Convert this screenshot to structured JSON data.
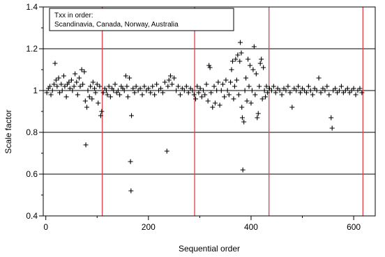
{
  "chart_data": {
    "type": "scatter",
    "title": "",
    "xlabel": "Sequential order",
    "ylabel": "Scale factor",
    "xlim": [
      -5,
      642
    ],
    "ylim": [
      0.4,
      1.4
    ],
    "xticks": [
      0,
      200,
      400,
      600
    ],
    "yticks": [
      0.4,
      0.6,
      0.8,
      1.0,
      1.2,
      1.4
    ],
    "ytick_labels": [
      "0.4",
      "0.6",
      "0.8",
      "1",
      "1.2",
      "1.4"
    ],
    "grid": "horizontal",
    "legend_placement": "top-left",
    "annotation": {
      "line1": "Txx in order:",
      "line2": "Scandinavia, Canada, Norway, Australia"
    },
    "vertical_lines": [
      110,
      290,
      435,
      618
    ],
    "marker": "+",
    "colors": {
      "points": "#000000",
      "gridlines": "#000000",
      "vertical_lines": "#e0404a"
    },
    "series": [
      {
        "values": [
          [
            2,
            0.99
          ],
          [
            5,
            1.01
          ],
          [
            8,
            1.02
          ],
          [
            10,
            0.98
          ],
          [
            13,
            1.0
          ],
          [
            16,
            1.03
          ],
          [
            18,
            1.13
          ],
          [
            20,
            1.05
          ],
          [
            22,
            1.02
          ],
          [
            25,
            1.06
          ],
          [
            27,
            0.99
          ],
          [
            30,
            1.03
          ],
          [
            32,
            1.0
          ],
          [
            35,
            1.07
          ],
          [
            37,
            1.02
          ],
          [
            40,
            0.97
          ],
          [
            42,
            1.03
          ],
          [
            45,
            1.04
          ],
          [
            47,
            1.01
          ],
          [
            50,
            1.05
          ],
          [
            52,
            1.0
          ],
          [
            55,
            1.02
          ],
          [
            57,
            1.08
          ],
          [
            60,
            1.04
          ],
          [
            62,
            0.98
          ],
          [
            65,
            1.06
          ],
          [
            67,
            1.02
          ],
          [
            70,
            1.1
          ],
          [
            72,
            1.03
          ],
          [
            75,
            1.09
          ],
          [
            77,
            0.95
          ],
          [
            78,
            0.74
          ],
          [
            80,
            0.92
          ],
          [
            82,
            1.0
          ],
          [
            85,
            0.97
          ],
          [
            87,
            1.02
          ],
          [
            90,
            0.96
          ],
          [
            92,
            1.04
          ],
          [
            95,
            1.01
          ],
          [
            97,
            0.99
          ],
          [
            100,
            1.03
          ],
          [
            102,
            0.94
          ],
          [
            105,
            1.02
          ],
          [
            107,
            0.88
          ],
          [
            109,
            0.9
          ],
          [
            112,
            0.99
          ],
          [
            115,
            1.01
          ],
          [
            118,
            1.0
          ],
          [
            120,
            0.98
          ],
          [
            123,
            1.02
          ],
          [
            126,
            0.97
          ],
          [
            129,
            1.01
          ],
          [
            132,
            1.0
          ],
          [
            135,
            1.03
          ],
          [
            138,
            0.99
          ],
          [
            141,
            1.0
          ],
          [
            144,
            0.98
          ],
          [
            147,
            1.02
          ],
          [
            150,
            1.01
          ],
          [
            153,
            1.0
          ],
          [
            156,
            1.07
          ],
          [
            158,
            1.02
          ],
          [
            160,
            0.97
          ],
          [
            163,
            1.06
          ],
          [
            165,
            0.66
          ],
          [
            166,
            0.52
          ],
          [
            167,
            0.88
          ],
          [
            170,
            1.01
          ],
          [
            173,
            0.99
          ],
          [
            176,
            1.02
          ],
          [
            180,
            1.0
          ],
          [
            184,
            1.01
          ],
          [
            188,
            0.98
          ],
          [
            192,
            1.02
          ],
          [
            196,
            1.0
          ],
          [
            200,
            1.01
          ],
          [
            204,
            0.99
          ],
          [
            208,
            1.02
          ],
          [
            212,
            0.98
          ],
          [
            216,
            1.03
          ],
          [
            220,
            1.0
          ],
          [
            224,
            1.01
          ],
          [
            228,
            0.99
          ],
          [
            232,
            1.04
          ],
          [
            236,
            0.71
          ],
          [
            238,
            1.02
          ],
          [
            240,
            1.05
          ],
          [
            243,
            1.07
          ],
          [
            246,
            1.03
          ],
          [
            250,
            1.06
          ],
          [
            254,
            1.0
          ],
          [
            258,
            1.02
          ],
          [
            262,
            0.98
          ],
          [
            266,
            1.01
          ],
          [
            270,
            1.0
          ],
          [
            274,
            1.02
          ],
          [
            278,
            0.99
          ],
          [
            282,
            1.01
          ],
          [
            286,
            1.0
          ],
          [
            289,
            0.98
          ],
          [
            292,
            0.96
          ],
          [
            295,
            1.02
          ],
          [
            298,
            0.99
          ],
          [
            301,
            1.01
          ],
          [
            304,
            0.97
          ],
          [
            307,
            1.0
          ],
          [
            310,
            0.98
          ],
          [
            313,
            1.03
          ],
          [
            316,
            0.95
          ],
          [
            318,
            1.12
          ],
          [
            320,
            1.11
          ],
          [
            322,
            0.99
          ],
          [
            325,
            0.92
          ],
          [
            328,
            1.02
          ],
          [
            330,
            0.94
          ],
          [
            333,
            1.0
          ],
          [
            336,
            1.04
          ],
          [
            339,
            0.93
          ],
          [
            342,
            1.0
          ],
          [
            345,
            1.03
          ],
          [
            348,
            0.97
          ],
          [
            351,
            1.05
          ],
          [
            354,
            1.0
          ],
          [
            357,
            0.98
          ],
          [
            360,
            1.04
          ],
          [
            362,
            1.1
          ],
          [
            364,
            1.14
          ],
          [
            366,
            0.96
          ],
          [
            368,
            1.02
          ],
          [
            370,
            1.15
          ],
          [
            372,
            1.05
          ],
          [
            374,
            1.17
          ],
          [
            376,
            0.98
          ],
          [
            378,
            1.14
          ],
          [
            379,
            1.23
          ],
          [
            381,
            1.18
          ],
          [
            382,
            0.92
          ],
          [
            383,
            0.87
          ],
          [
            384,
            0.62
          ],
          [
            386,
            0.85
          ],
          [
            388,
            1.0
          ],
          [
            390,
            1.06
          ],
          [
            392,
            0.95
          ],
          [
            394,
            1.15
          ],
          [
            396,
            1.02
          ],
          [
            398,
            1.12
          ],
          [
            400,
            0.94
          ],
          [
            402,
            1.0
          ],
          [
            404,
            1.1
          ],
          [
            406,
            1.21
          ],
          [
            408,
            0.98
          ],
          [
            410,
            1.08
          ],
          [
            412,
            0.87
          ],
          [
            414,
            0.89
          ],
          [
            416,
            1.02
          ],
          [
            418,
            1.13
          ],
          [
            420,
            1.15
          ],
          [
            422,
            0.96
          ],
          [
            424,
            1.11
          ],
          [
            426,
            1.0
          ],
          [
            428,
            0.97
          ],
          [
            430,
            1.02
          ],
          [
            432,
            0.99
          ],
          [
            436,
            1.01
          ],
          [
            440,
            1.0
          ],
          [
            444,
            1.02
          ],
          [
            448,
            0.99
          ],
          [
            452,
            1.01
          ],
          [
            456,
            1.0
          ],
          [
            460,
            0.98
          ],
          [
            464,
            1.01
          ],
          [
            468,
            1.0
          ],
          [
            472,
            1.02
          ],
          [
            476,
            0.99
          ],
          [
            480,
            0.92
          ],
          [
            484,
            1.01
          ],
          [
            488,
            1.0
          ],
          [
            492,
            1.02
          ],
          [
            496,
            0.99
          ],
          [
            500,
            1.01
          ],
          [
            504,
            1.0
          ],
          [
            508,
            0.99
          ],
          [
            512,
            1.02
          ],
          [
            516,
            1.0
          ],
          [
            520,
            0.98
          ],
          [
            524,
            1.01
          ],
          [
            528,
            1.0
          ],
          [
            532,
            1.06
          ],
          [
            536,
            0.99
          ],
          [
            540,
            1.01
          ],
          [
            544,
            1.0
          ],
          [
            548,
            1.02
          ],
          [
            552,
            0.98
          ],
          [
            556,
            0.87
          ],
          [
            558,
            0.82
          ],
          [
            560,
            1.0
          ],
          [
            564,
            1.01
          ],
          [
            568,
            0.99
          ],
          [
            572,
            1.0
          ],
          [
            576,
            1.02
          ],
          [
            580,
            0.99
          ],
          [
            584,
            1.0
          ],
          [
            588,
            1.01
          ],
          [
            592,
            0.99
          ],
          [
            596,
            1.0
          ],
          [
            600,
            1.01
          ],
          [
            604,
            0.98
          ],
          [
            608,
            1.0
          ],
          [
            612,
            1.01
          ],
          [
            616,
            0.99
          ]
        ]
      }
    ]
  }
}
